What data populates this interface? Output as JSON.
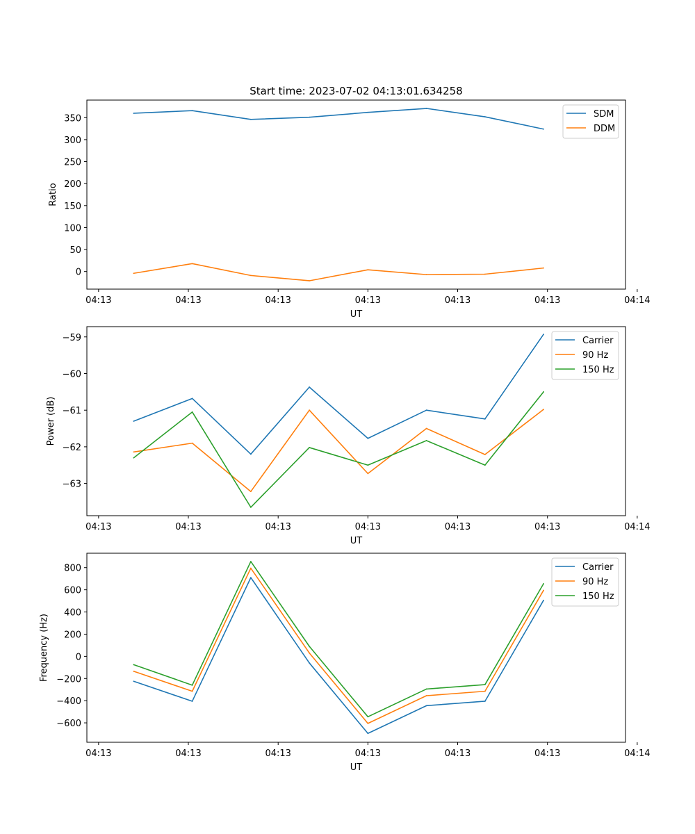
{
  "figure_title": "Start time: 2023-07-02 04:13:01.634258",
  "colors": {
    "c0": "#1f77b4",
    "c1": "#ff7f0e",
    "c2": "#2ca02c"
  },
  "chart_data": [
    {
      "type": "line",
      "title": "Start time: 2023-07-02 04:13:01.634258",
      "xlabel": "UT",
      "ylabel": "Ratio",
      "x": [
        1,
        2,
        3,
        4,
        5,
        6,
        7,
        8
      ],
      "xlim": [
        0.2,
        9.4
      ],
      "xticks": [
        0.4,
        1.933,
        3.467,
        5.0,
        6.533,
        8.067,
        9.6
      ],
      "xticklabels": [
        "04:13",
        "04:13",
        "04:13",
        "04:13",
        "04:13",
        "04:13",
        "04:14"
      ],
      "ylim": [
        -40,
        390
      ],
      "yticks": [
        0,
        50,
        100,
        150,
        200,
        250,
        300,
        350
      ],
      "yticklabels": [
        "0",
        "50",
        "100",
        "150",
        "200",
        "250",
        "300",
        "350"
      ],
      "legend_position": "top-right",
      "series": [
        {
          "name": "SDM",
          "color": "#1f77b4",
          "values": [
            360,
            366,
            346,
            351,
            362,
            371,
            352,
            324
          ]
        },
        {
          "name": "DDM",
          "color": "#ff7f0e",
          "values": [
            -4,
            18,
            -9,
            -21,
            4,
            -7,
            -6,
            8
          ]
        }
      ]
    },
    {
      "type": "line",
      "title": "",
      "xlabel": "UT",
      "ylabel": "Power (dB)",
      "x": [
        1,
        2,
        3,
        4,
        5,
        6,
        7,
        8
      ],
      "xlim": [
        0.2,
        9.4
      ],
      "xticks": [
        0.4,
        1.933,
        3.467,
        5.0,
        6.533,
        8.067,
        9.6
      ],
      "xticklabels": [
        "04:13",
        "04:13",
        "04:13",
        "04:13",
        "04:13",
        "04:13",
        "04:14"
      ],
      "ylim": [
        -63.88,
        -58.72
      ],
      "yticks": [
        -63,
        -62,
        -61,
        -60,
        -59
      ],
      "yticklabels": [
        "−63",
        "−62",
        "−61",
        "−60",
        "−59"
      ],
      "legend_position": "top-right",
      "series": [
        {
          "name": "Carrier",
          "color": "#1f77b4",
          "values": [
            -61.3,
            -60.68,
            -62.2,
            -60.37,
            -61.77,
            -61.0,
            -61.24,
            -58.93
          ]
        },
        {
          "name": "90 Hz",
          "color": "#ff7f0e",
          "values": [
            -62.14,
            -61.9,
            -63.22,
            -61.0,
            -62.73,
            -61.5,
            -62.21,
            -60.98
          ]
        },
        {
          "name": "150 Hz",
          "color": "#2ca02c",
          "values": [
            -62.3,
            -61.05,
            -63.65,
            -62.02,
            -62.5,
            -61.83,
            -62.5,
            -60.5
          ]
        }
      ]
    },
    {
      "type": "line",
      "title": "",
      "xlabel": "UT",
      "ylabel": "Frequency (Hz)",
      "x": [
        1,
        2,
        3,
        4,
        5,
        6,
        7,
        8
      ],
      "xlim": [
        0.2,
        9.4
      ],
      "xticks": [
        0.4,
        1.933,
        3.467,
        5.0,
        6.533,
        8.067,
        9.6
      ],
      "xticklabels": [
        "04:13",
        "04:13",
        "04:13",
        "04:13",
        "04:13",
        "04:13",
        "04:14"
      ],
      "ylim": [
        -775,
        930
      ],
      "yticks": [
        -600,
        -400,
        -200,
        0,
        200,
        400,
        600,
        800
      ],
      "yticklabels": [
        "−600",
        "−400",
        "−200",
        "0",
        "200",
        "400",
        "600",
        "800"
      ],
      "legend_position": "top-right",
      "series": [
        {
          "name": "Carrier",
          "color": "#1f77b4",
          "values": [
            -225,
            -405,
            710,
            -60,
            -695,
            -445,
            -405,
            505
          ]
        },
        {
          "name": "90 Hz",
          "color": "#ff7f0e",
          "values": [
            -135,
            -315,
            795,
            30,
            -605,
            -355,
            -315,
            595
          ]
        },
        {
          "name": "150 Hz",
          "color": "#2ca02c",
          "values": [
            -75,
            -260,
            855,
            90,
            -545,
            -295,
            -255,
            655
          ]
        }
      ]
    }
  ]
}
